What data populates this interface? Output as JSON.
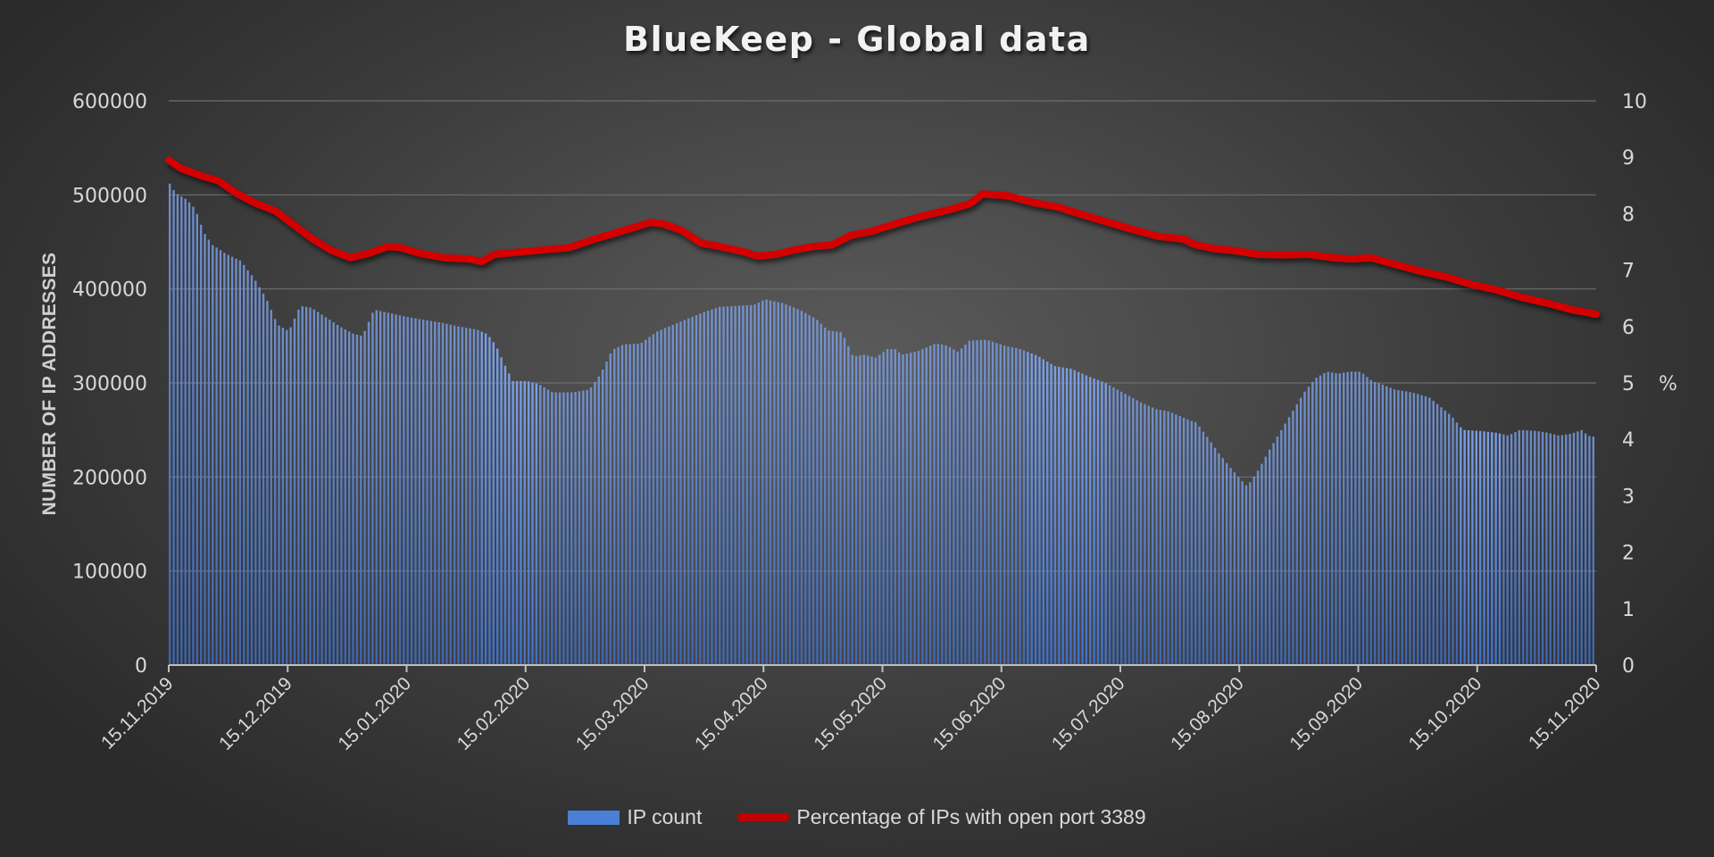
{
  "chart_data": {
    "type": "bar+line",
    "title": "BlueKeep - Global data",
    "xlabel": "",
    "ylabel": "NUMBER OF IP ADDRESSES",
    "y2label": "%",
    "ylim": [
      0,
      600000
    ],
    "y2lim": [
      0,
      10
    ],
    "yticks": [
      "0",
      "100000",
      "200000",
      "300000",
      "400000",
      "500000",
      "600000"
    ],
    "y2ticks": [
      "0",
      "1",
      "2",
      "3",
      "4",
      "5",
      "6",
      "7",
      "8",
      "9",
      "10"
    ],
    "xticks": [
      "15.11.2019",
      "15.12.2019",
      "15.01.2020",
      "15.02.2020",
      "15.03.2020",
      "15.04.2020",
      "15.05.2020",
      "15.06.2020",
      "15.07.2020",
      "15.08.2020",
      "15.09.2020",
      "15.10.2020",
      "15.11.2020"
    ],
    "grid": true,
    "legend_position": "bottom",
    "series": [
      {
        "name": "IP count",
        "type": "bar",
        "axis": "left",
        "color": "#4a7fd6",
        "keypoints_day_value": [
          [
            0,
            512000
          ],
          [
            2,
            502000
          ],
          [
            6,
            495000
          ],
          [
            9,
            485000
          ],
          [
            12,
            460000
          ],
          [
            15,
            447000
          ],
          [
            20,
            437000
          ],
          [
            25,
            430000
          ],
          [
            30,
            410000
          ],
          [
            34,
            390000
          ],
          [
            38,
            362000
          ],
          [
            42,
            355000
          ],
          [
            46,
            382000
          ],
          [
            50,
            380000
          ],
          [
            55,
            370000
          ],
          [
            60,
            360000
          ],
          [
            65,
            352000
          ],
          [
            68,
            350000
          ],
          [
            72,
            378000
          ],
          [
            78,
            374000
          ],
          [
            84,
            370000
          ],
          [
            90,
            367000
          ],
          [
            96,
            364000
          ],
          [
            102,
            360000
          ],
          [
            108,
            357000
          ],
          [
            112,
            352000
          ],
          [
            115,
            340000
          ],
          [
            118,
            320000
          ],
          [
            121,
            302000
          ],
          [
            126,
            302000
          ],
          [
            130,
            299000
          ],
          [
            135,
            290000
          ],
          [
            142,
            290000
          ],
          [
            148,
            293000
          ],
          [
            152,
            310000
          ],
          [
            156,
            335000
          ],
          [
            160,
            341000
          ],
          [
            166,
            342000
          ],
          [
            172,
            355000
          ],
          [
            180,
            365000
          ],
          [
            188,
            375000
          ],
          [
            194,
            381000
          ],
          [
            200,
            382000
          ],
          [
            206,
            383000
          ],
          [
            210,
            389000
          ],
          [
            216,
            385000
          ],
          [
            222,
            378000
          ],
          [
            228,
            368000
          ],
          [
            232,
            356000
          ],
          [
            237,
            354000
          ],
          [
            241,
            328000
          ],
          [
            245,
            330000
          ],
          [
            249,
            327000
          ],
          [
            253,
            336000
          ],
          [
            256,
            336000
          ],
          [
            258,
            330000
          ],
          [
            264,
            334000
          ],
          [
            270,
            342000
          ],
          [
            274,
            340000
          ],
          [
            278,
            333000
          ],
          [
            282,
            345000
          ],
          [
            288,
            346000
          ],
          [
            294,
            340000
          ],
          [
            300,
            336000
          ],
          [
            306,
            329000
          ],
          [
            312,
            318000
          ],
          [
            318,
            315000
          ],
          [
            324,
            307000
          ],
          [
            330,
            300000
          ],
          [
            336,
            290000
          ],
          [
            342,
            280000
          ],
          [
            348,
            272000
          ],
          [
            352,
            270000
          ],
          [
            356,
            265000
          ],
          [
            360,
            260000
          ],
          [
            362,
            258000
          ],
          [
            366,
            242000
          ],
          [
            370,
            225000
          ],
          [
            374,
            210000
          ],
          [
            378,
            196000
          ],
          [
            380,
            190000
          ],
          [
            384,
            208000
          ],
          [
            388,
            230000
          ],
          [
            392,
            250000
          ],
          [
            396,
            270000
          ],
          [
            400,
            290000
          ],
          [
            404,
            305000
          ],
          [
            408,
            312000
          ],
          [
            412,
            310000
          ],
          [
            416,
            312000
          ],
          [
            420,
            312000
          ],
          [
            424,
            302000
          ],
          [
            428,
            298000
          ],
          [
            432,
            293000
          ],
          [
            438,
            290000
          ],
          [
            444,
            285000
          ],
          [
            448,
            275000
          ],
          [
            452,
            265000
          ],
          [
            456,
            250000
          ],
          [
            462,
            249000
          ],
          [
            468,
            247000
          ],
          [
            472,
            244000
          ],
          [
            476,
            250000
          ],
          [
            482,
            249000
          ],
          [
            486,
            247000
          ],
          [
            490,
            244000
          ],
          [
            494,
            246000
          ],
          [
            498,
            250000
          ],
          [
            500,
            244000
          ],
          [
            502,
            243000
          ]
        ]
      },
      {
        "name": "Percentage of IPs with open port 3389",
        "type": "line",
        "axis": "right",
        "color": "#c00000",
        "keypoints_day_value": [
          [
            0,
            8.95
          ],
          [
            4,
            8.8
          ],
          [
            10,
            8.68
          ],
          [
            16,
            8.58
          ],
          [
            22,
            8.35
          ],
          [
            28,
            8.18
          ],
          [
            34,
            8.05
          ],
          [
            40,
            7.8
          ],
          [
            46,
            7.55
          ],
          [
            52,
            7.35
          ],
          [
            58,
            7.22
          ],
          [
            64,
            7.3
          ],
          [
            70,
            7.42
          ],
          [
            74,
            7.4
          ],
          [
            80,
            7.3
          ],
          [
            88,
            7.22
          ],
          [
            96,
            7.2
          ],
          [
            100,
            7.15
          ],
          [
            104,
            7.28
          ],
          [
            112,
            7.32
          ],
          [
            120,
            7.36
          ],
          [
            128,
            7.4
          ],
          [
            136,
            7.55
          ],
          [
            144,
            7.68
          ],
          [
            150,
            7.78
          ],
          [
            154,
            7.85
          ],
          [
            158,
            7.82
          ],
          [
            164,
            7.7
          ],
          [
            170,
            7.48
          ],
          [
            176,
            7.42
          ],
          [
            184,
            7.32
          ],
          [
            188,
            7.25
          ],
          [
            194,
            7.28
          ],
          [
            200,
            7.36
          ],
          [
            206,
            7.42
          ],
          [
            212,
            7.45
          ],
          [
            218,
            7.62
          ],
          [
            224,
            7.68
          ],
          [
            232,
            7.82
          ],
          [
            240,
            7.95
          ],
          [
            250,
            8.08
          ],
          [
            256,
            8.18
          ],
          [
            260,
            8.35
          ],
          [
            268,
            8.32
          ],
          [
            276,
            8.2
          ],
          [
            284,
            8.12
          ],
          [
            292,
            7.98
          ],
          [
            300,
            7.85
          ],
          [
            308,
            7.72
          ],
          [
            316,
            7.6
          ],
          [
            324,
            7.55
          ],
          [
            328,
            7.45
          ],
          [
            334,
            7.38
          ],
          [
            340,
            7.35
          ],
          [
            348,
            7.28
          ],
          [
            356,
            7.27
          ],
          [
            364,
            7.28
          ],
          [
            372,
            7.22
          ],
          [
            378,
            7.2
          ],
          [
            384,
            7.22
          ],
          [
            392,
            7.1
          ],
          [
            400,
            6.98
          ],
          [
            408,
            6.88
          ],
          [
            416,
            6.75
          ],
          [
            424,
            6.65
          ],
          [
            432,
            6.52
          ],
          [
            440,
            6.42
          ],
          [
            448,
            6.3
          ],
          [
            456,
            6.22
          ]
        ],
        "note": "line keypoints use same day index scale as bars"
      }
    ]
  },
  "legend": {
    "bar_label": "IP count",
    "line_label": "Percentage of IPs with open port 3389"
  }
}
